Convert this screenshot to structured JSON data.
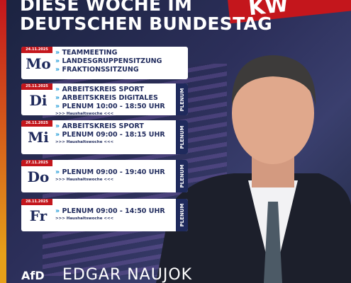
{
  "header": {
    "title_lines": [
      "DIESE WOCHE IM",
      "DEUTSCHEN BUNDESTAG"
    ],
    "badge": "KW"
  },
  "days": [
    {
      "date": "24.11.2025",
      "day": "Mo",
      "items": [
        "TEAMMEETING",
        "LANDESGRUPPENSITZUNG",
        "FRAKTIONSSITZUNG"
      ]
    },
    {
      "date": "25.11.2025",
      "day": "Di",
      "items": [
        "ARBEITSKREIS SPORT",
        "ARBEITSKREIS DIGITALES",
        "PLENUM 10:00 - 18:50 UHR"
      ],
      "note": ">>> Haushaltswoche <<<",
      "tag": "PLENUM"
    },
    {
      "date": "26.11.2025",
      "day": "Mi",
      "items": [
        "ARBEITSKREIS SPORT",
        "PLENUM 09:00 - 18:15 UHR"
      ],
      "note": ">>> Haushaltswoche <<<",
      "tag": "PLENUM"
    },
    {
      "date": "27.11.2025",
      "day": "Do",
      "items": [
        "PLENUM 09:00 - 19:40 UHR"
      ],
      "note": ">>> Haushaltswoche <<<",
      "tag": "PLENUM"
    },
    {
      "date": "28.11.2025",
      "day": "Fr",
      "items": [
        "PLENUM 09:00 - 14:50 UHR"
      ],
      "note": ">>> Haushaltswoche <<<",
      "tag": "PLENUM"
    }
  ],
  "footer": {
    "logo": "AfD",
    "name": "EDGAR NAUJOK"
  }
}
